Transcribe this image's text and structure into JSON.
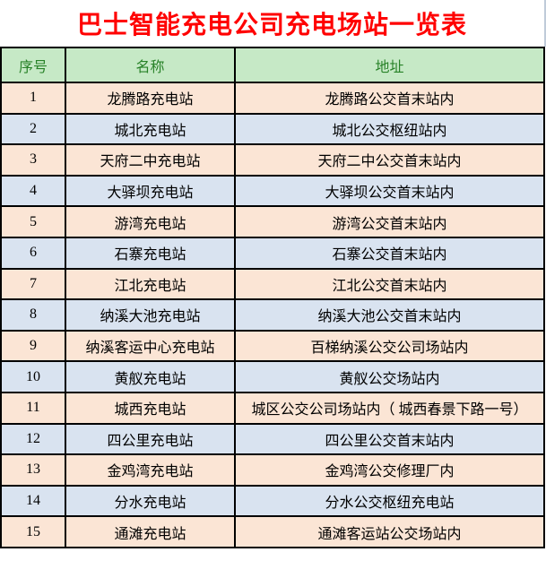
{
  "title": "巴士智能充电公司充电场站一览表",
  "table": {
    "headers": [
      "序号",
      "名称",
      "地址"
    ],
    "rows": [
      {
        "no": "1",
        "name": "龙腾路充电站",
        "address": "龙腾路公交首末站内"
      },
      {
        "no": "2",
        "name": "城北充电站",
        "address": "城北公交枢纽站内"
      },
      {
        "no": "3",
        "name": "天府二中充电站",
        "address": "天府二中公交首末站内"
      },
      {
        "no": "4",
        "name": "大驿坝充电站",
        "address": "大驿坝公交首末站内"
      },
      {
        "no": "5",
        "name": "游湾充电站",
        "address": "游湾公交首末站内"
      },
      {
        "no": "6",
        "name": "石寨充电站",
        "address": "石寨公交首末站内"
      },
      {
        "no": "7",
        "name": "江北充电站",
        "address": "江北公交首末站内"
      },
      {
        "no": "8",
        "name": "纳溪大池充电站",
        "address": "纳溪大池公交首末站内"
      },
      {
        "no": "9",
        "name": "纳溪客运中心充电站",
        "address": "百梯纳溪公交公司场站内"
      },
      {
        "no": "10",
        "name": "黄舣充电站",
        "address": "黄舣公交场站内"
      },
      {
        "no": "11",
        "name": "城西充电站",
        "address": "城区公交公司场站内（ 城西春景下路一号）"
      },
      {
        "no": "12",
        "name": "四公里充电站",
        "address": "四公里公交首末站内"
      },
      {
        "no": "13",
        "name": "金鸡湾充电站",
        "address": "金鸡湾公交修理厂内"
      },
      {
        "no": "14",
        "name": "分水充电站",
        "address": "分水公交枢纽充电站"
      },
      {
        "no": "15",
        "name": "通滩充电站",
        "address": "通滩客运站公交场站内"
      }
    ]
  },
  "colors": {
    "title_red": "#ff0000",
    "header_bg": "#c6e9c6",
    "header_text": "#288228",
    "row_odd_bg": "#fbe5d5",
    "row_even_bg": "#d9e3f0",
    "grid_border": "#000000"
  }
}
